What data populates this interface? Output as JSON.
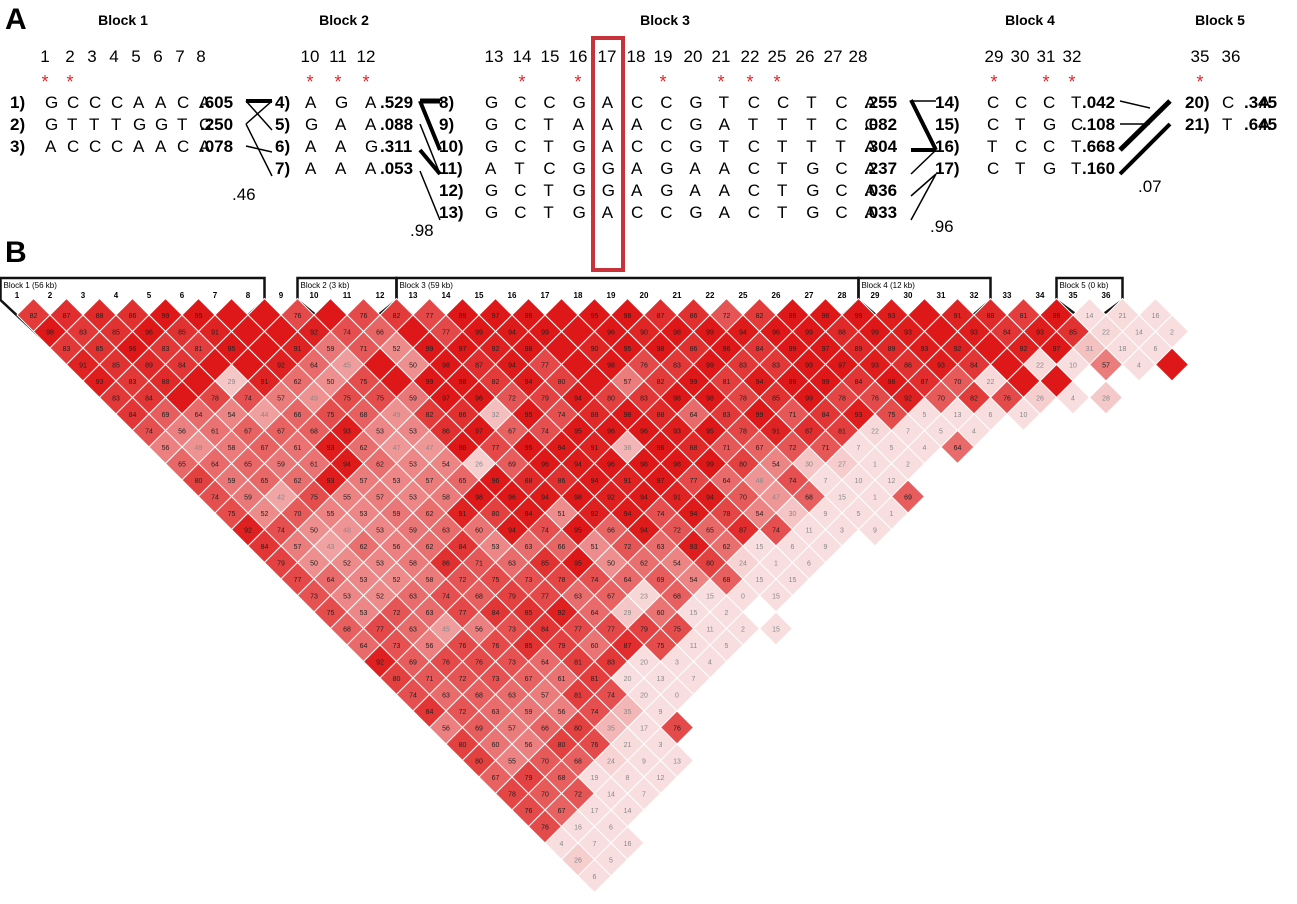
{
  "panel_a": {
    "label": "A",
    "blocks": [
      {
        "title": "Block 1",
        "snps": [
          "1",
          "2",
          "3",
          "4",
          "5",
          "6",
          "7",
          "8"
        ],
        "starred": [
          "1",
          "2"
        ],
        "haplotypes": [
          {
            "num": "1)",
            "seq": "GCCCAACA",
            "freq": ".605"
          },
          {
            "num": "2)",
            "seq": "GTTTGGTC",
            "freq": ".250"
          },
          {
            "num": "3)",
            "seq": "ACCCAACA",
            "freq": ".078"
          }
        ],
        "multiallelic_d": ".46"
      },
      {
        "title": "Block 2",
        "snps": [
          "10",
          "11",
          "12"
        ],
        "starred": [
          "10",
          "11",
          "12"
        ],
        "haplotypes": [
          {
            "num": "4)",
            "seq": "AGA",
            "freq": ".529"
          },
          {
            "num": "5)",
            "seq": "GAA",
            "freq": ".088"
          },
          {
            "num": "6)",
            "seq": "AAG",
            "freq": ".311"
          },
          {
            "num": "7)",
            "seq": "AAA",
            "freq": ".053"
          }
        ],
        "multiallelic_d": ".98"
      },
      {
        "title": "Block 3",
        "snps": [
          "13",
          "14",
          "15",
          "16",
          "17",
          "18",
          "19",
          "20",
          "21",
          "22",
          "25",
          "26",
          "27",
          "28"
        ],
        "starred": [
          "14",
          "16",
          "19",
          "21",
          "22",
          "25"
        ],
        "highlighted_snp": "17",
        "haplotypes": [
          {
            "num": "8)",
            "seq": "GCCGACCGTCCTCA",
            "freq": ".255"
          },
          {
            "num": "9)",
            "seq": "GCTAAACGATTTCG",
            "freq": ".082"
          },
          {
            "num": "10)",
            "seq": "GCTGACCGTCTTTA",
            "freq": ".304"
          },
          {
            "num": "11)",
            "seq": "ATCGGAGAACTGCA",
            "freq": ".237"
          },
          {
            "num": "12)",
            "seq": "GCTGGAGAACTGCA",
            "freq": ".036"
          },
          {
            "num": "13)",
            "seq": "GCTGACCGACTGCA",
            "freq": ".033"
          }
        ],
        "multiallelic_d": ".96"
      },
      {
        "title": "Block 4",
        "snps": [
          "29",
          "30",
          "31",
          "32"
        ],
        "starred": [
          "29",
          "31",
          "32"
        ],
        "haplotypes": [
          {
            "num": "14)",
            "seq": "CCCT",
            "freq": ".042"
          },
          {
            "num": "15)",
            "seq": "CTGC",
            "freq": ".108"
          },
          {
            "num": "16)",
            "seq": "TCCT",
            "freq": ".668"
          },
          {
            "num": "17)",
            "seq": "CTGT",
            "freq": ".160"
          }
        ],
        "multiallelic_d": ".07"
      },
      {
        "title": "Block 5",
        "snps": [
          "35",
          "36"
        ],
        "starred": [
          "35"
        ],
        "haplotypes": [
          {
            "num": "20)",
            "seq": "CA",
            "freq": ".345"
          },
          {
            "num": "21)",
            "seq": "TA",
            "freq": ".645"
          }
        ]
      }
    ],
    "star_symbol": "*"
  },
  "panel_b": {
    "label": "B",
    "markers": [
      "1",
      "2",
      "3",
      "4",
      "5",
      "6",
      "7",
      "8",
      "9",
      "10",
      "11",
      "12",
      "13",
      "14",
      "15",
      "16",
      "17",
      "18",
      "19",
      "20",
      "21",
      "22",
      "25",
      "26",
      "27",
      "28",
      "29",
      "30",
      "31",
      "32",
      "33",
      "34",
      "35",
      "36"
    ],
    "blocks": [
      {
        "label": "Block 1 (56 kb)",
        "from": 0,
        "to": 7
      },
      {
        "label": "Block 2 (3 kb)",
        "from": 9,
        "to": 11
      },
      {
        "label": "Block 3 (59 kb)",
        "from": 12,
        "to": 25
      },
      {
        "label": "Block 4 (12 kb)",
        "from": 26,
        "to": 29
      },
      {
        "label": "Block 5 (0 kb)",
        "from": 32,
        "to": 33
      }
    ],
    "ld_rows": [
      [
        "82",
        "87",
        "88",
        "86",
        "99",
        "95",
        "",
        "",
        "76",
        "",
        "76",
        "82",
        "77",
        "99",
        "97",
        "99",
        "",
        "95",
        "98",
        "87",
        "86",
        "72",
        "82",
        "99",
        "96",
        "99",
        "93",
        "",
        "91",
        "88",
        "81",
        "99",
        "14",
        "21",
        "16"
      ],
      [
        "98",
        "83",
        "85",
        "96",
        "85",
        "91",
        "",
        "",
        "92",
        "74",
        "66",
        "",
        "77",
        "99",
        "94",
        "99",
        "",
        "96",
        "90",
        "98",
        "99",
        "94",
        "96",
        "99",
        "88",
        "99",
        "93",
        "",
        "93",
        "84",
        "93",
        "85",
        "22",
        "14",
        "2"
      ],
      [
        "83",
        "85",
        "96",
        "83",
        "81",
        "95",
        "",
        "91",
        "59",
        "71",
        "52",
        "99",
        "97",
        "92",
        "98",
        "",
        "90",
        "95",
        "98",
        "86",
        "96",
        "84",
        "99",
        "97",
        "89",
        "89",
        "93",
        "92",
        "",
        "92",
        "97",
        "31",
        "18",
        "6"
      ],
      [
        "91",
        "85",
        "89",
        "84",
        "",
        "",
        "92",
        "64",
        "45",
        "",
        "50",
        "98",
        "87",
        "94",
        "77",
        "",
        "98",
        "76",
        "83",
        "99",
        "83",
        "83",
        "99",
        "97",
        "93",
        "86",
        "93",
        "84",
        "",
        "22",
        "10",
        "57",
        "4",
        ""
      ],
      [
        "93",
        "83",
        "88",
        "",
        "29",
        "91",
        "62",
        "50",
        "75",
        "",
        "99",
        "98",
        "82",
        "94",
        "80",
        "",
        "57",
        "82",
        "99",
        "81",
        "94",
        "99",
        "99",
        "84",
        "98",
        "87",
        "70",
        "22",
        "",
        ""
      ],
      [
        "83",
        "84",
        "",
        "78",
        "74",
        "57",
        "49",
        "75",
        "75",
        "59",
        "97",
        "96",
        "72",
        "79",
        "94",
        "80",
        "83",
        "98",
        "98",
        "78",
        "85",
        "99",
        "78",
        "76",
        "92",
        "70",
        "82",
        "76",
        "26",
        "4",
        "28"
      ],
      [
        "84",
        "69",
        "64",
        "54",
        "44",
        "66",
        "75",
        "68",
        "49",
        "82",
        "86",
        "32",
        "95",
        "74",
        "88",
        "98",
        "88",
        "64",
        "83",
        "99",
        "71",
        "84",
        "93",
        "75",
        "5",
        "13",
        "6",
        "10"
      ],
      [
        "74",
        "56",
        "61",
        "67",
        "67",
        "68",
        "93",
        "53",
        "53",
        "86",
        "97",
        "67",
        "74",
        "95",
        "96",
        "96",
        "93",
        "95",
        "78",
        "91",
        "87",
        "81",
        "22",
        "7",
        "5",
        "4"
      ],
      [
        "56",
        "49",
        "58",
        "67",
        "61",
        "93",
        "62",
        "47",
        "47",
        "98",
        "77",
        "95",
        "94",
        "91",
        "36",
        "96",
        "88",
        "71",
        "67",
        "72",
        "71",
        "7",
        "5",
        "4",
        "64"
      ],
      [
        "65",
        "64",
        "65",
        "59",
        "61",
        "94",
        "62",
        "53",
        "54",
        "26",
        "69",
        "96",
        "94",
        "96",
        "98",
        "98",
        "99",
        "80",
        "54",
        "30",
        "27",
        "1",
        "2"
      ],
      [
        "80",
        "59",
        "65",
        "62",
        "93",
        "57",
        "53",
        "57",
        "65",
        "96",
        "88",
        "86",
        "94",
        "91",
        "97",
        "77",
        "64",
        "48",
        "74",
        "7",
        "10",
        "12"
      ],
      [
        "74",
        "59",
        "42",
        "75",
        "55",
        "57",
        "53",
        "58",
        "98",
        "96",
        "94",
        "98",
        "92",
        "94",
        "91",
        "94",
        "70",
        "47",
        "68",
        "15",
        "1",
        "69"
      ],
      [
        "75",
        "52",
        "70",
        "55",
        "53",
        "59",
        "62",
        "91",
        "80",
        "94",
        "51",
        "92",
        "94",
        "74",
        "94",
        "78",
        "54",
        "30",
        "9",
        "5",
        "1"
      ],
      [
        "92",
        "74",
        "50",
        "48",
        "53",
        "59",
        "63",
        "60",
        "94",
        "74",
        "95",
        "66",
        "94",
        "72",
        "65",
        "87",
        "74",
        "11",
        "3",
        "9"
      ],
      [
        "84",
        "57",
        "43",
        "62",
        "56",
        "62",
        "84",
        "53",
        "63",
        "66",
        "51",
        "72",
        "63",
        "93",
        "62",
        "15",
        "6",
        "9"
      ],
      [
        "79",
        "50",
        "52",
        "53",
        "58",
        "86",
        "71",
        "63",
        "85",
        "95",
        "50",
        "62",
        "54",
        "80",
        "24",
        "1",
        "6"
      ],
      [
        "77",
        "64",
        "53",
        "52",
        "58",
        "72",
        "75",
        "73",
        "78",
        "74",
        "64",
        "69",
        "54",
        "68",
        "15",
        "15"
      ],
      [
        "73",
        "53",
        "52",
        "63",
        "74",
        "68",
        "79",
        "77",
        "63",
        "67",
        "23",
        "68",
        "15",
        "0",
        "15"
      ],
      [
        "75",
        "53",
        "72",
        "63",
        "77",
        "84",
        "85",
        "92",
        "64",
        "29",
        "60",
        "15",
        "2"
      ],
      [
        "68",
        "77",
        "63",
        "45",
        "56",
        "73",
        "84",
        "77",
        "77",
        "79",
        "75",
        "11",
        "2",
        "15"
      ],
      [
        "64",
        "73",
        "56",
        "76",
        "76",
        "85",
        "79",
        "60",
        "87",
        "75",
        "11",
        "5"
      ],
      [
        "92",
        "69",
        "76",
        "76",
        "73",
        "64",
        "81",
        "83",
        "20",
        "3",
        "4"
      ],
      [
        "80",
        "71",
        "72",
        "73",
        "67",
        "61",
        "81",
        "20",
        "13",
        "7"
      ],
      [
        "74",
        "63",
        "68",
        "63",
        "57",
        "81",
        "74",
        "20",
        "0"
      ],
      [
        "84",
        "72",
        "63",
        "59",
        "56",
        "74",
        "35",
        "9"
      ],
      [
        "56",
        "69",
        "57",
        "66",
        "80",
        "35",
        "17",
        "76"
      ],
      [
        "80",
        "60",
        "56",
        "80",
        "76",
        "21",
        "3"
      ],
      [
        "80",
        "55",
        "70",
        "68",
        "24",
        "9",
        "13"
      ],
      [
        "67",
        "79",
        "68",
        "19",
        "8",
        "12"
      ],
      [
        "78",
        "70",
        "72",
        "14",
        "7"
      ],
      [
        "76",
        "67",
        "17",
        "14"
      ],
      [
        "76",
        "16",
        "6"
      ],
      [
        "4",
        "7",
        "16"
      ],
      [
        "26",
        "5"
      ],
      [
        "6"
      ]
    ],
    "colors": {
      "strong": "#de1818",
      "weak": "#f8dede",
      "blue": "#b1b3d6",
      "white": "#ffffff"
    }
  }
}
